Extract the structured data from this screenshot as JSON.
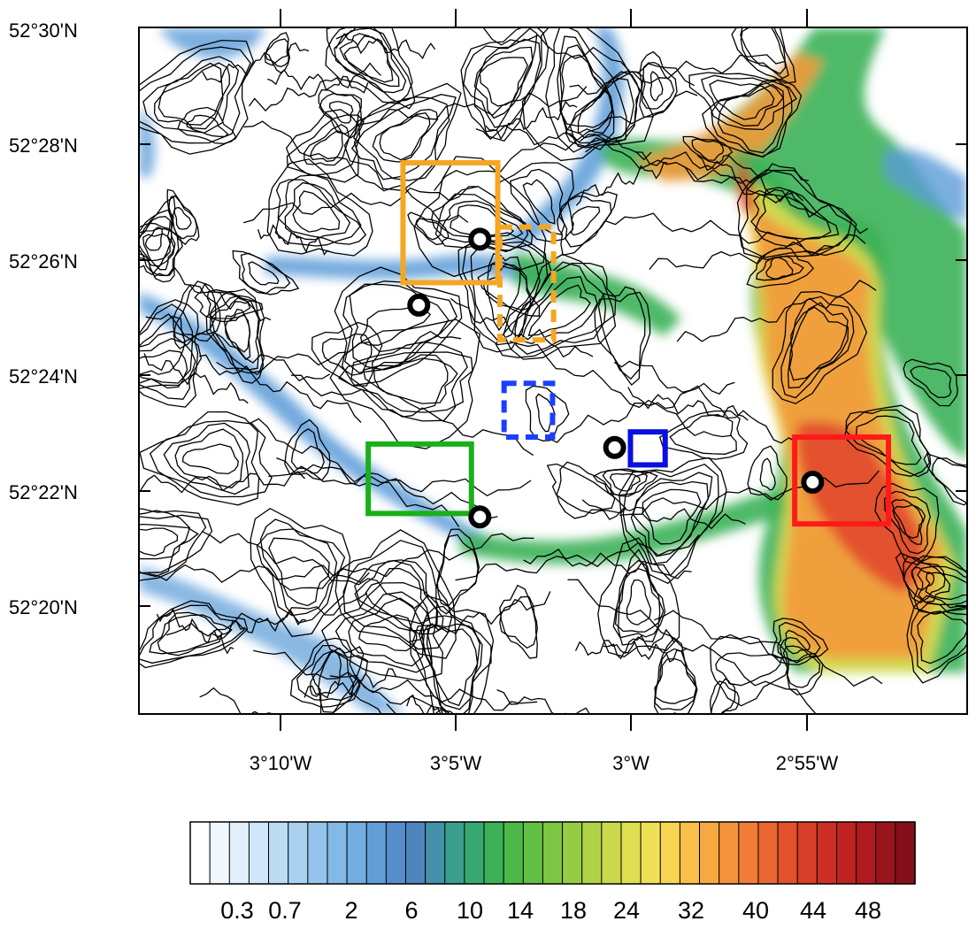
{
  "map": {
    "lat_labels": [
      "52°30'N",
      "52°28'N",
      "52°26'N",
      "52°24'N",
      "52°22'N",
      "52°20'N"
    ],
    "lon_labels": [
      "3°10'W",
      "3°5'W",
      "3°W",
      "2°55'W"
    ],
    "lat_range_deg": [
      52.297,
      52.5
    ],
    "lon_range_deg": [
      -3.22,
      -2.985
    ]
  },
  "markers": [
    {
      "name": "marker-orange-box-site",
      "lat": 52.439,
      "lon": -3.072
    },
    {
      "name": "marker-west-site",
      "lat": 52.42,
      "lon": -3.101
    },
    {
      "name": "marker-blue-box-site",
      "lat": 52.379,
      "lon": -3.008
    },
    {
      "name": "marker-green-box-site",
      "lat": 52.359,
      "lon": -3.072
    },
    {
      "name": "marker-red-box-site",
      "lat": 52.369,
      "lon": -2.914
    }
  ],
  "boxes": [
    {
      "name": "orange-solid-box",
      "color": "#f5a623",
      "style": "solid",
      "lat": [
        52.4265,
        52.461
      ],
      "lon": [
        -3.1085,
        -3.0635
      ]
    },
    {
      "name": "orange-dashed-box",
      "color": "#f5a623",
      "style": "dashed",
      "lat": [
        52.41,
        52.4425
      ],
      "lon": [
        -3.0625,
        -3.037
      ]
    },
    {
      "name": "blue-dashed-box",
      "color": "#1a40ff",
      "style": "dashed",
      "lat": [
        52.382,
        52.3975
      ],
      "lon": [
        -3.0605,
        -3.0375
      ]
    },
    {
      "name": "blue-solid-box",
      "color": "#0a10e0",
      "style": "solid",
      "lat": [
        52.374,
        52.3835
      ],
      "lon": [
        -3.0005,
        -2.984
      ]
    },
    {
      "name": "green-solid-box",
      "color": "#19b019",
      "style": "solid",
      "lat": [
        52.36,
        52.38
      ],
      "lon": [
        -3.125,
        -3.076
      ]
    },
    {
      "name": "red-solid-box",
      "color": "#ff1a1a",
      "style": "solid",
      "lat": [
        52.357,
        52.382
      ],
      "lon": [
        -2.9225,
        -2.878
      ]
    }
  ],
  "colorbar": {
    "tick_labels": [
      "0.3",
      "0.7",
      "2",
      "6",
      "10",
      "14",
      "18",
      "24",
      "32",
      "40",
      "44",
      "48"
    ],
    "colors": [
      "#ffffff",
      "#f1f8fd",
      "#e1f0fb",
      "#cfe7f8",
      "#bcdcf4",
      "#a9d1f0",
      "#95c5ec",
      "#83b9e6",
      "#72ade0",
      "#629fd8",
      "#558ecb",
      "#4f85bd",
      "#4490a8",
      "#3c9e8c",
      "#37a86f",
      "#3cb157",
      "#4bb84a",
      "#62bf45",
      "#7cc643",
      "#96cc44",
      "#b0d346",
      "#c9d94b",
      "#dede51",
      "#efe155",
      "#f8d552",
      "#f9c049",
      "#f7a941",
      "#f5933b",
      "#f07c35",
      "#ea6630",
      "#e2512c",
      "#d83f28",
      "#cc2f25",
      "#be2322",
      "#ad1a1f",
      "#9a141c",
      "#86101a"
    ]
  },
  "shading": {
    "colors": {
      "blue_light": "#cfe6f7",
      "blue": "#5a9bd8",
      "green": "#3cb157",
      "yellow": "#e8e04f",
      "orange": "#f39a3d",
      "red": "#e0432a"
    }
  }
}
